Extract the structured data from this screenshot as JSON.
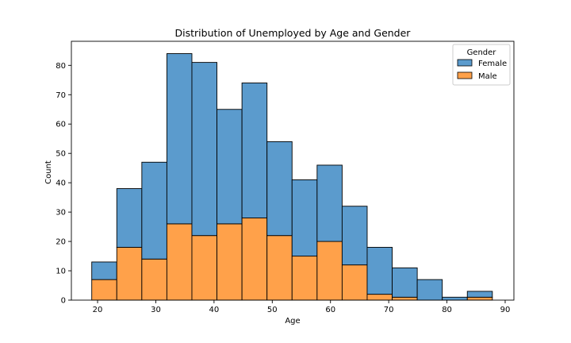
{
  "chart_data": {
    "type": "bar",
    "title": "Distribution of Unemployed by Age and Gender",
    "xlabel": "Age",
    "ylabel": "Count",
    "xlim": [
      15.5,
      91.5
    ],
    "ylim": [
      0,
      88.2
    ],
    "xticks": [
      20,
      30,
      40,
      50,
      60,
      70,
      80,
      90
    ],
    "yticks": [
      0,
      10,
      20,
      30,
      40,
      50,
      60,
      70,
      80
    ],
    "bin_edges": [
      19.0,
      23.3,
      27.6,
      31.9,
      36.2,
      40.5,
      44.8,
      49.1,
      53.4,
      57.7,
      62.0,
      66.3,
      70.6,
      74.9,
      79.2,
      83.5,
      87.8
    ],
    "stacked": true,
    "series": [
      {
        "name": "Male",
        "color": "#f28e2b",
        "face": "#ffa14a",
        "values": [
          7,
          18,
          14,
          26,
          22,
          26,
          28,
          22,
          15,
          20,
          12,
          2,
          1,
          0,
          0,
          1
        ]
      },
      {
        "name": "Female",
        "color": "#4c8cc0",
        "face": "#5b9bcd",
        "values": [
          6,
          20,
          33,
          58,
          59,
          39,
          46,
          32,
          26,
          26,
          20,
          16,
          10,
          7,
          1,
          2
        ]
      }
    ],
    "legend": {
      "title": "Gender",
      "placement": "top-right",
      "entries": [
        "Female",
        "Male"
      ]
    },
    "grid": false
  }
}
